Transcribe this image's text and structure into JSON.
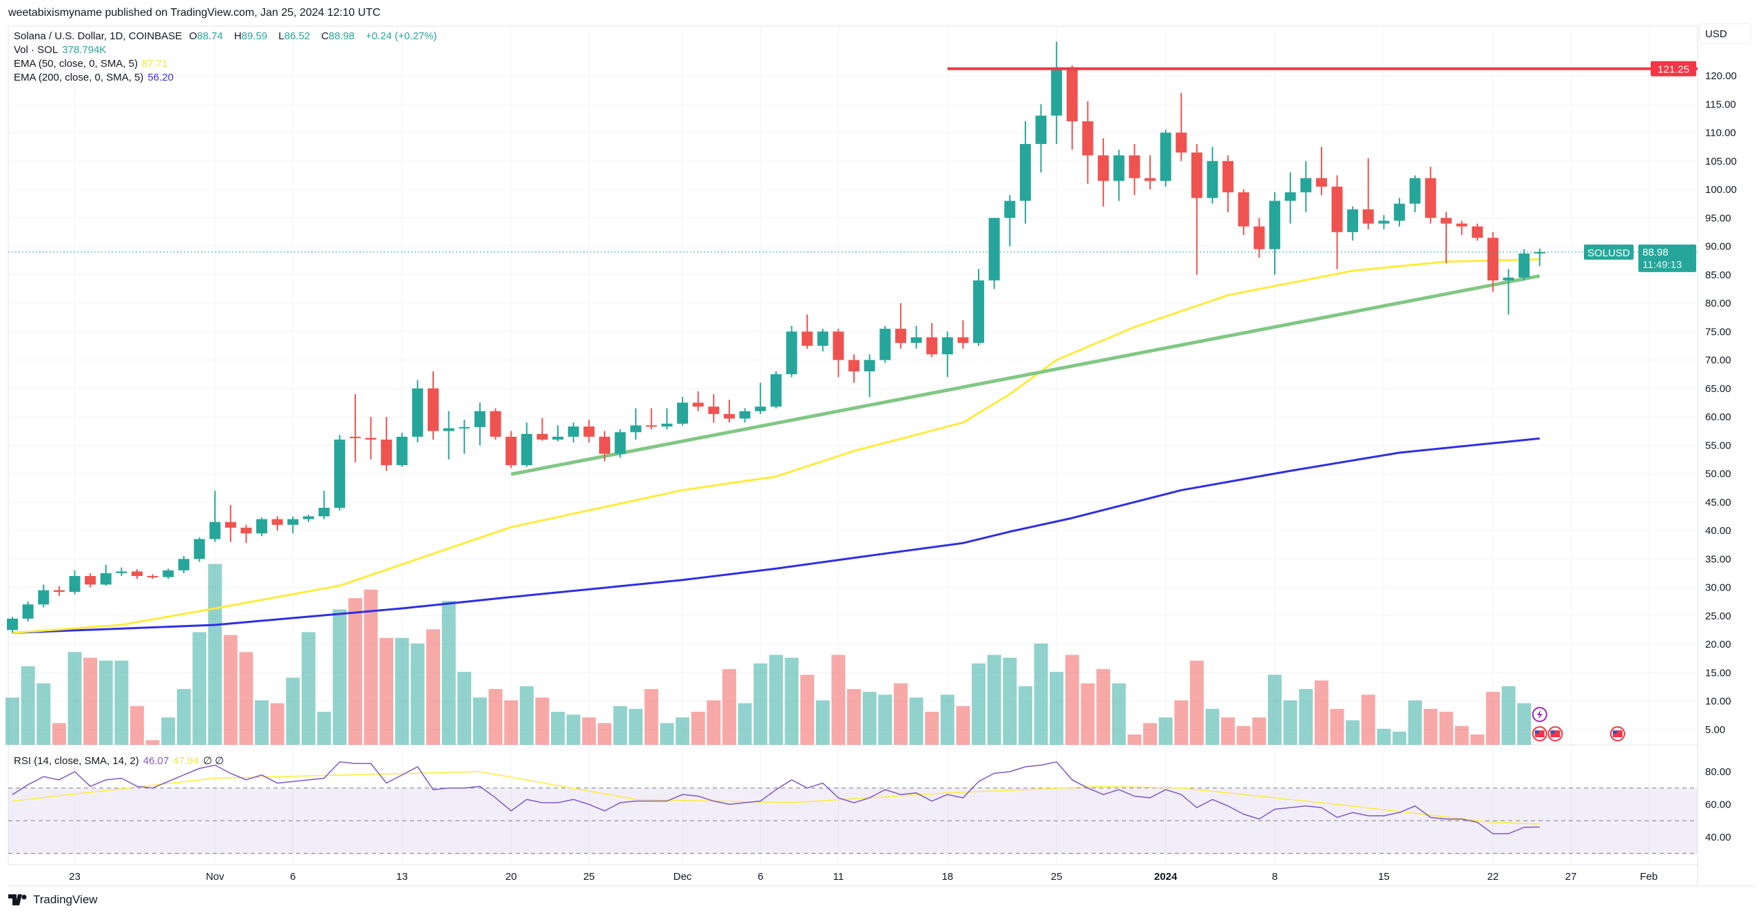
{
  "publisher": "weetabixismyname published on TradingView.com, Jan 25, 2024 12:10 UTC",
  "legend": {
    "symbol": "Solana / U.S. Dollar, 1D, COINBASE",
    "o_label": "O",
    "o": "88.74",
    "h_label": "H",
    "h": "89.59",
    "l_label": "L",
    "l": "86.52",
    "c_label": "C",
    "c": "88.98",
    "change": "+0.24 (+0.27%)",
    "vol_label": "Vol · SOL",
    "vol": "378.794K",
    "ema50_label": "EMA (50, close, 0, SMA, 5)",
    "ema50": "87.71",
    "ema200_label": "EMA (200, close, 0, SMA, 5)",
    "ema200": "56.20",
    "rsi_label": "RSI (14, close, SMA, 14, 2)",
    "rsi": "46.07",
    "rsi_sma": "47.94",
    "rsi_extra": "∅ ∅"
  },
  "currency": "USD",
  "logo": "TradingView",
  "colors": {
    "up": "#26a69a",
    "down": "#ef5350",
    "ema50": "#ffeb3b",
    "ema200": "#2e2ee6",
    "trendline": "#81c784",
    "resistance": "#f23645",
    "rsi": "#7e57c2",
    "rsi_sma": "#ffeb3b"
  },
  "chart_data": {
    "type": "candlestick",
    "price_ticks": [
      "5.00",
      "10.00",
      "15.00",
      "20.00",
      "25.00",
      "30.00",
      "35.00",
      "40.00",
      "45.00",
      "50.00",
      "55.00",
      "60.00",
      "65.00",
      "70.00",
      "75.00",
      "80.00",
      "85.00",
      "90.00",
      "95.00",
      "100.00",
      "105.00",
      "110.00",
      "115.00",
      "120.00"
    ],
    "x_ticks": [
      {
        "date": "2023-10-23",
        "label": "23"
      },
      {
        "date": "2023-11-01",
        "label": "Nov"
      },
      {
        "date": "2023-11-06",
        "label": "6"
      },
      {
        "date": "2023-11-13",
        "label": "13"
      },
      {
        "date": "2023-11-20",
        "label": "20"
      },
      {
        "date": "2023-11-25",
        "label": "25"
      },
      {
        "date": "2023-12-01",
        "label": "Dec"
      },
      {
        "date": "2023-12-06",
        "label": "6"
      },
      {
        "date": "2023-12-11",
        "label": "11"
      },
      {
        "date": "2023-12-18",
        "label": "18"
      },
      {
        "date": "2023-12-25",
        "label": "25"
      },
      {
        "date": "2024-01-01",
        "label": "2024",
        "bold": true
      },
      {
        "date": "2024-01-08",
        "label": "8"
      },
      {
        "date": "2024-01-15",
        "label": "15"
      },
      {
        "date": "2024-01-22",
        "label": "22"
      },
      {
        "date": "2024-01-27",
        "label": "27"
      },
      {
        "date": "2024-02-01",
        "label": "Feb"
      }
    ],
    "candles_columns": [
      "date",
      "open",
      "high",
      "low",
      "close",
      "volume"
    ],
    "candles": [
      [
        "2023-10-19",
        22.5,
        24.8,
        22,
        24.5,
        10.5
      ],
      [
        "2023-10-20",
        24.5,
        27.5,
        24,
        27,
        16
      ],
      [
        "2023-10-21",
        27,
        30.5,
        26.5,
        29.5,
        13
      ],
      [
        "2023-10-22",
        29.5,
        30.2,
        28.5,
        29.2,
        6
      ],
      [
        "2023-10-23",
        29.2,
        33,
        28.8,
        32,
        18.5
      ],
      [
        "2023-10-24",
        32,
        32.5,
        30,
        30.5,
        17.5
      ],
      [
        "2023-10-25",
        30.5,
        34,
        30.3,
        32.5,
        17
      ],
      [
        "2023-10-26",
        32.5,
        33.5,
        32,
        32.8,
        17
      ],
      [
        "2023-10-27",
        32.8,
        33.2,
        31.5,
        32,
        9
      ],
      [
        "2023-10-28",
        32,
        32.3,
        31.5,
        31.8,
        3
      ],
      [
        "2023-10-29",
        31.8,
        33.3,
        31.5,
        33,
        7
      ],
      [
        "2023-10-30",
        33,
        35.5,
        32.5,
        35,
        12
      ],
      [
        "2023-10-31",
        35,
        38.8,
        34.5,
        38.5,
        22
      ],
      [
        "2023-11-01",
        38.5,
        47,
        38,
        41.5,
        34
      ],
      [
        "2023-11-02",
        41.5,
        44.5,
        38,
        40.5,
        21.5
      ],
      [
        "2023-11-03",
        40.5,
        41,
        37.8,
        39.5,
        18.5
      ],
      [
        "2023-11-04",
        39.5,
        42.3,
        39,
        42,
        10
      ],
      [
        "2023-11-05",
        42,
        42.5,
        40,
        41,
        9.5
      ],
      [
        "2023-11-06",
        41,
        42.5,
        39.5,
        42,
        14
      ],
      [
        "2023-11-07",
        42,
        42.8,
        41.5,
        42.5,
        22
      ],
      [
        "2023-11-08",
        42.5,
        47,
        42,
        44,
        8
      ],
      [
        "2023-11-09",
        44,
        56.8,
        43.5,
        56,
        26
      ],
      [
        "2023-11-10",
        56.5,
        64,
        52,
        56.3,
        28
      ],
      [
        "2023-11-11",
        56.3,
        60,
        52.5,
        56,
        29.5
      ],
      [
        "2023-11-12",
        56,
        60,
        50.5,
        51.5,
        21
      ],
      [
        "2023-11-13",
        51.5,
        57.2,
        51.2,
        56.5,
        21
      ],
      [
        "2023-11-14",
        56.5,
        66.5,
        55.5,
        65,
        20
      ],
      [
        "2023-11-15",
        65,
        68,
        56,
        57.5,
        22.5
      ],
      [
        "2023-11-16",
        57.5,
        61,
        52.5,
        58,
        27.5
      ],
      [
        "2023-11-17",
        58,
        59.5,
        53.5,
        58.2,
        15
      ],
      [
        "2023-11-18",
        58.2,
        62.5,
        55,
        61,
        10.5
      ],
      [
        "2023-11-19",
        61,
        61.5,
        56,
        56.5,
        12
      ],
      [
        "2023-11-20",
        56.5,
        57.5,
        51,
        51.5,
        10
      ],
      [
        "2023-11-21",
        51.5,
        59,
        51.2,
        57,
        12.5
      ],
      [
        "2023-11-22",
        57,
        59.8,
        55.8,
        56,
        10.5
      ],
      [
        "2023-11-23",
        56,
        58.5,
        55.7,
        56.5,
        8
      ],
      [
        "2023-11-24",
        56.5,
        59,
        55.5,
        58.3,
        7.5
      ],
      [
        "2023-11-25",
        58.3,
        59.5,
        55.5,
        56.5,
        7
      ],
      [
        "2023-11-26",
        56.5,
        57.5,
        52.2,
        53.5,
        6
      ],
      [
        "2023-11-27",
        53.5,
        57.8,
        52.8,
        57.3,
        9
      ],
      [
        "2023-11-28",
        57.3,
        61.5,
        56,
        58.5,
        8.5
      ],
      [
        "2023-11-29",
        58.5,
        61.5,
        57.8,
        58.3,
        12
      ],
      [
        "2023-11-30",
        58.3,
        61.5,
        57.8,
        58.8,
        6
      ],
      [
        "2023-12-01",
        58.8,
        63.5,
        58.5,
        62.5,
        7
      ],
      [
        "2023-12-02",
        62.5,
        64.5,
        61,
        61.8,
        8
      ],
      [
        "2023-12-03",
        61.8,
        64,
        59,
        60.5,
        10
      ],
      [
        "2023-12-04",
        60.5,
        63,
        59,
        59.7,
        15.5
      ],
      [
        "2023-12-05",
        59.7,
        61.5,
        59,
        61,
        9.5
      ],
      [
        "2023-12-06",
        61,
        66,
        60.5,
        61.8,
        16.5
      ],
      [
        "2023-12-07",
        61.8,
        68,
        61.5,
        67.5,
        18
      ],
      [
        "2023-12-08",
        67.5,
        76,
        67,
        75,
        17.5
      ],
      [
        "2023-12-09",
        75,
        78,
        72,
        72.5,
        14.5
      ],
      [
        "2023-12-10",
        72.5,
        75.5,
        71.5,
        75,
        10
      ],
      [
        "2023-12-11",
        75,
        75.5,
        67,
        70,
        18
      ],
      [
        "2023-12-12",
        70,
        71,
        66,
        68,
        12
      ],
      [
        "2023-12-13",
        68,
        71,
        63.5,
        70,
        11.5
      ],
      [
        "2023-12-14",
        70,
        76,
        69.5,
        75.5,
        11
      ],
      [
        "2023-12-15",
        75.5,
        80,
        72,
        73,
        13
      ],
      [
        "2023-12-16",
        73,
        76,
        72,
        74,
        10.5
      ],
      [
        "2023-12-17",
        74,
        76.5,
        70.5,
        71,
        8
      ],
      [
        "2023-12-18",
        71,
        75,
        67,
        74,
        11
      ],
      [
        "2023-12-19",
        74,
        77,
        72,
        73,
        9
      ],
      [
        "2023-12-20",
        73,
        86,
        72.5,
        84,
        16.5
      ],
      [
        "2023-12-21",
        84,
        95,
        82.5,
        95,
        18
      ],
      [
        "2023-12-22",
        95,
        99,
        90,
        98,
        17.5
      ],
      [
        "2023-12-23",
        98,
        112,
        94,
        108,
        12.5
      ],
      [
        "2023-12-24",
        108,
        115,
        103,
        113,
        20
      ],
      [
        "2023-12-25",
        113,
        126,
        108,
        121.5,
        15
      ],
      [
        "2023-12-26",
        121.5,
        121.8,
        107,
        112,
        18
      ],
      [
        "2023-12-27",
        112,
        115.5,
        101,
        106,
        13
      ],
      [
        "2023-12-28",
        106,
        109,
        97,
        101.5,
        15.5
      ],
      [
        "2023-12-29",
        101.5,
        107,
        98,
        106,
        13
      ],
      [
        "2023-12-30",
        106,
        108,
        99,
        102,
        4
      ],
      [
        "2023-12-31",
        102,
        106,
        100,
        101.5,
        6
      ],
      [
        "2024-01-01",
        101.5,
        110.5,
        100.5,
        110,
        7
      ],
      [
        "2024-01-02",
        110,
        117,
        105,
        106.5,
        10
      ],
      [
        "2024-01-03",
        106.5,
        108,
        85,
        98.5,
        17
      ],
      [
        "2024-01-04",
        98.5,
        107.5,
        97.5,
        105,
        8.5
      ],
      [
        "2024-01-05",
        105,
        106,
        96,
        99.5,
        7
      ],
      [
        "2024-01-06",
        99.5,
        100,
        92,
        93.5,
        5.5
      ],
      [
        "2024-01-07",
        93.5,
        95,
        88,
        89.5,
        7
      ],
      [
        "2024-01-08",
        89.5,
        99.5,
        85,
        98,
        14.5
      ],
      [
        "2024-01-09",
        98,
        103,
        94,
        99.5,
        10
      ],
      [
        "2024-01-10",
        99.5,
        105,
        96,
        102,
        12
      ],
      [
        "2024-01-11",
        102,
        107.5,
        99,
        100.5,
        13.5
      ],
      [
        "2024-01-12",
        100.5,
        102.5,
        86,
        92.5,
        8.5
      ],
      [
        "2024-01-13",
        92.5,
        97,
        91,
        96.5,
        6.5
      ],
      [
        "2024-01-14",
        96.5,
        105.5,
        93,
        94,
        11
      ],
      [
        "2024-01-15",
        94,
        95.5,
        93,
        94.5,
        5
      ],
      [
        "2024-01-16",
        94.5,
        98.5,
        93.5,
        97.5,
        4.5
      ],
      [
        "2024-01-17",
        97.5,
        102.5,
        96,
        102,
        10
      ],
      [
        "2024-01-18",
        102,
        104,
        94,
        95,
        8.5
      ],
      [
        "2024-01-19",
        95,
        96,
        87,
        94,
        8
      ],
      [
        "2024-01-20",
        94,
        94.5,
        92,
        93.5,
        5.5
      ],
      [
        "2024-01-21",
        93.5,
        94,
        91,
        91.5,
        4
      ],
      [
        "2024-01-22",
        91.5,
        92.5,
        82,
        84,
        11.5
      ],
      [
        "2024-01-23",
        84,
        86,
        78,
        84.5,
        12.5
      ],
      [
        "2024-01-24",
        84.5,
        89.5,
        84,
        88.74,
        9.5
      ],
      [
        "2024-01-25",
        88.74,
        89.59,
        86.52,
        88.98,
        0.4
      ]
    ],
    "ema50": [
      [
        "2023-10-19",
        22
      ],
      [
        "2023-10-26",
        23.4
      ],
      [
        "2023-11-01",
        26.3
      ],
      [
        "2023-11-09",
        30.3
      ],
      [
        "2023-11-20",
        40.6
      ],
      [
        "2023-12-01",
        47.1
      ],
      [
        "2023-12-07",
        49.5
      ],
      [
        "2023-12-12",
        54
      ],
      [
        "2023-12-19",
        59
      ],
      [
        "2023-12-22",
        64
      ],
      [
        "2023-12-25",
        70
      ],
      [
        "2023-12-30",
        75.8
      ],
      [
        "2024-01-05",
        81.4
      ],
      [
        "2024-01-13",
        85.7
      ],
      [
        "2024-01-19",
        87.3
      ],
      [
        "2024-01-25",
        87.71
      ]
    ],
    "ema200": [
      [
        "2023-10-19",
        22
      ],
      [
        "2023-11-01",
        23.4
      ],
      [
        "2023-11-13",
        26.3
      ],
      [
        "2023-11-20",
        28.3
      ],
      [
        "2023-12-01",
        31.3
      ],
      [
        "2023-12-07",
        33.3
      ],
      [
        "2023-12-12",
        35.2
      ],
      [
        "2023-12-19",
        37.8
      ],
      [
        "2023-12-22",
        39.8
      ],
      [
        "2023-12-26",
        42.2
      ],
      [
        "2024-01-02",
        47.1
      ],
      [
        "2024-01-09",
        50.5
      ],
      [
        "2024-01-16",
        53.7
      ],
      [
        "2024-01-25",
        56.2
      ]
    ],
    "trendline": [
      [
        "2023-11-20",
        49.9
      ],
      [
        "2024-01-25",
        84.8
      ]
    ],
    "resistance": {
      "value": 121.25,
      "label": "121.25",
      "from": "2023-12-18"
    },
    "last_price": {
      "value": 88.98,
      "symbol": "SOLUSD",
      "label": "88.98",
      "countdown": "11:49:13"
    },
    "rsi_ticks": [
      "40.00",
      "60.00",
      "80.00"
    ],
    "rsi_levels": [
      70,
      50,
      30
    ],
    "rsi": [
      66,
      72,
      77,
      75,
      80,
      71,
      75,
      76,
      71,
      70,
      74,
      78,
      82,
      84,
      79,
      75,
      78,
      73,
      74,
      75,
      76,
      86,
      85,
      85,
      73,
      78,
      83,
      69,
      70,
      70,
      71,
      64,
      56,
      63,
      61,
      61,
      63,
      60,
      56,
      61,
      62,
      62,
      62,
      66,
      65,
      62,
      60,
      61,
      62,
      69,
      75,
      70,
      73,
      64,
      61,
      64,
      69,
      66,
      67,
      62,
      66,
      64,
      74,
      79,
      80,
      83,
      84,
      86,
      75,
      70,
      66,
      69,
      65,
      64,
      69,
      66,
      58,
      63,
      59,
      54,
      51,
      57,
      58,
      59,
      58,
      52,
      55,
      53,
      53,
      55,
      59,
      52,
      51,
      51,
      49,
      42,
      42,
      46,
      46.07
    ],
    "rsi_sma": [
      [
        "2023-10-19",
        62
      ],
      [
        "2023-11-01",
        76
      ],
      [
        "2023-11-18",
        80
      ],
      [
        "2023-11-28",
        63
      ],
      [
        "2023-12-08",
        61
      ],
      [
        "2023-12-18",
        67
      ],
      [
        "2023-12-28",
        71
      ],
      [
        "2024-01-02",
        70
      ],
      [
        "2024-01-12",
        60
      ],
      [
        "2024-01-22",
        49
      ],
      [
        "2024-01-25",
        47.94
      ]
    ],
    "event_icons": [
      {
        "date": "2024-01-25",
        "icon": "lightning-icon"
      },
      {
        "date": "2024-01-25",
        "icon": "us-flag-icon"
      },
      {
        "date": "2024-01-26",
        "icon": "us-flag-icon"
      },
      {
        "date": "2024-01-30",
        "icon": "us-flag-icon"
      }
    ]
  }
}
